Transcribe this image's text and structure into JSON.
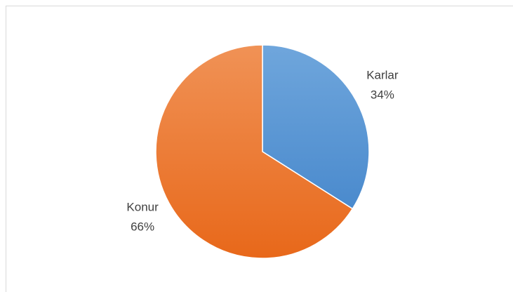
{
  "chart_data": {
    "type": "pie",
    "categories": [
      "Karlar",
      "Konur"
    ],
    "values": [
      34,
      66
    ],
    "value_labels": [
      "34%",
      "66%"
    ],
    "colors": [
      "#5b9bd5",
      "#ed7d31"
    ]
  }
}
